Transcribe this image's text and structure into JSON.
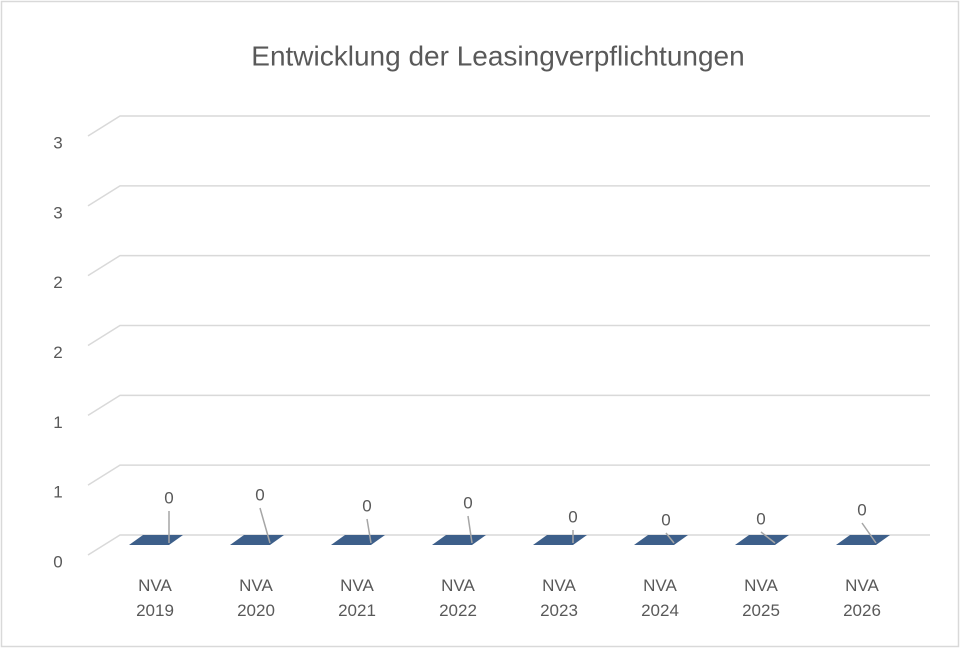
{
  "chart_data": {
    "type": "bar3d",
    "title": "Entwicklung der Leasingverpflichtungen",
    "categories": [
      "NVA 2019",
      "NVA 2020",
      "NVA 2021",
      "NVA 2022",
      "NVA 2023",
      "NVA 2024",
      "NVA 2025",
      "NVA 2026"
    ],
    "values": [
      0,
      0,
      0,
      0,
      0,
      0,
      0,
      0
    ],
    "color": "#3d5f8a",
    "ylim": [
      0,
      3
    ],
    "yticks": [
      0,
      {
        "value": 0.5,
        "label": "1"
      },
      1,
      {
        "value": 1.5,
        "label": "2"
      },
      2,
      {
        "value": 2.5,
        "label": "3"
      },
      3
    ],
    "grid": true
  }
}
